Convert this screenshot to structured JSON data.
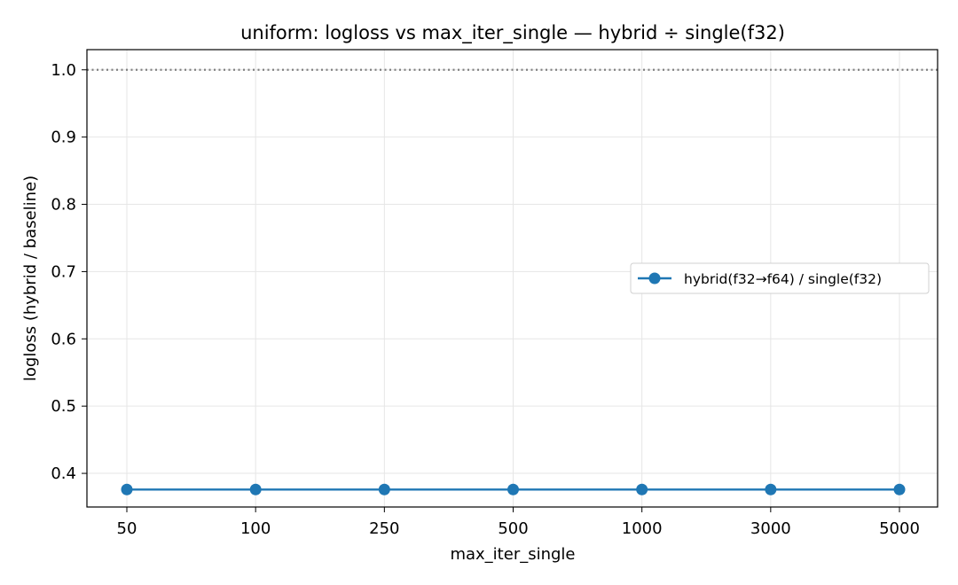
{
  "chart_data": {
    "type": "line",
    "title": "uniform: logloss vs max_iter_single — hybrid ÷ single(f32)",
    "xlabel": "max_iter_single",
    "ylabel": "logloss (hybrid / baseline)",
    "categories": [
      "50",
      "100",
      "250",
      "500",
      "1000",
      "3000",
      "5000"
    ],
    "series": [
      {
        "name": "hybrid(f32→f64) / single(f32)",
        "values": [
          0.376,
          0.376,
          0.376,
          0.376,
          0.376,
          0.376,
          0.376
        ],
        "color": "#1f77b4"
      }
    ],
    "reference_line": {
      "y": 1.0,
      "style": "dotted",
      "color": "#808080"
    },
    "ylim": [
      0.35,
      1.03
    ],
    "yticks": [
      0.4,
      0.5,
      0.6,
      0.7,
      0.8,
      0.9,
      1.0
    ],
    "grid": true,
    "legend_position": "center-right"
  }
}
